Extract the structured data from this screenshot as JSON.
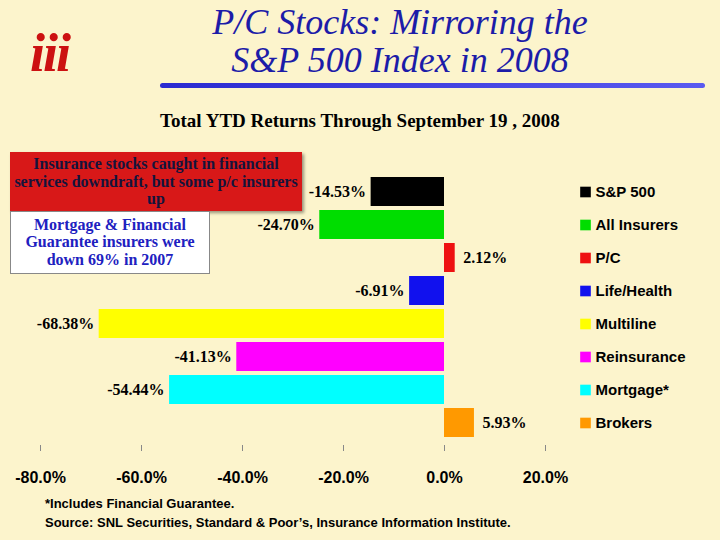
{
  "chart_data": {
    "type": "bar",
    "orientation": "horizontal",
    "logo": "iii",
    "title": "P/C Stocks: Mirroring the S&P 500 Index in 2008",
    "subtitle": "Total YTD Returns Through September 19 , 2008",
    "categories": [
      "S&P 500",
      "All Insurers",
      "P/C",
      "Life/Health",
      "Multiline",
      "Reinsurance",
      "Mortgage*",
      "Brokers"
    ],
    "values": [
      -14.53,
      -24.7,
      2.12,
      -6.91,
      -68.38,
      -41.13,
      -54.44,
      5.93
    ],
    "value_labels": [
      "-14.53%",
      "-24.70%",
      "2.12%",
      "-6.91%",
      "-68.38%",
      "-41.13%",
      "-54.44%",
      "5.93%"
    ],
    "colors": [
      "#000000",
      "#00dd00",
      "#ee1111",
      "#1111ee",
      "#ffff00",
      "#ff00ff",
      "#00ffff",
      "#ff9900"
    ],
    "data_labels": true,
    "legend": "right",
    "tick_labels": "x",
    "grid": false,
    "xlim": [
      -80,
      20
    ],
    "xticks": [
      {
        "value": -80,
        "label": "-80.0%"
      },
      {
        "value": -60,
        "label": "-60.0%"
      },
      {
        "value": -40,
        "label": "-40.0%"
      },
      {
        "value": -20,
        "label": "-20.0%"
      },
      {
        "value": 0,
        "label": "0.0%"
      },
      {
        "value": 20,
        "label": "20.0%"
      }
    ],
    "annotations": [
      "Insurance stocks caught in financial services downdraft, but some p/c insurers up",
      "Mortgage & Financial Guarantee insurers were down 69% in 2007"
    ],
    "footnote": "*Includes Financial Guarantee.",
    "source": "Source: SNL Securities, Standard & Poor’s, Insurance Information Institute."
  }
}
